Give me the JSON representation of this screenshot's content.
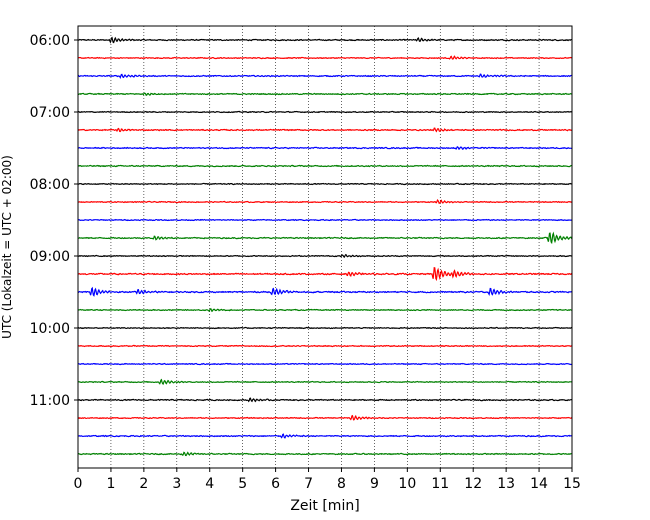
{
  "chart_data": {
    "type": "line",
    "title": "",
    "xlabel": "Zeit  [min]",
    "ylabel": "UTC (Lokalzeit = UTC + 02:00)",
    "xlim": [
      0,
      15
    ],
    "x_ticks": [
      "0",
      "1",
      "2",
      "3",
      "4",
      "5",
      "6",
      "7",
      "8",
      "9",
      "10",
      "11",
      "12",
      "13",
      "14",
      "15"
    ],
    "y_ticks": [
      "06:00",
      "07:00",
      "08:00",
      "09:00",
      "10:00",
      "11:00"
    ],
    "grid_x": true,
    "trace_colors": [
      "#000000",
      "#ff0000",
      "#0000ff",
      "#008000"
    ],
    "traces": [
      {
        "label": "06:00",
        "color": "#000000",
        "amplitude": 0.35,
        "events": [
          {
            "x": 1.0,
            "amp": 1.2
          },
          {
            "x": 10.3,
            "amp": 0.8
          }
        ]
      },
      {
        "label": "06:15",
        "color": "#ff0000",
        "amplitude": 0.3,
        "events": [
          {
            "x": 11.3,
            "amp": 0.8
          }
        ]
      },
      {
        "label": "06:30",
        "color": "#0000ff",
        "amplitude": 0.35,
        "events": [
          {
            "x": 1.3,
            "amp": 0.8
          },
          {
            "x": 12.2,
            "amp": 0.8
          }
        ]
      },
      {
        "label": "06:45",
        "color": "#008000",
        "amplitude": 0.35,
        "events": [
          {
            "x": 2.0,
            "amp": 0.6
          }
        ]
      },
      {
        "label": "07:00",
        "color": "#000000",
        "amplitude": 0.3,
        "events": []
      },
      {
        "label": "07:15",
        "color": "#ff0000",
        "amplitude": 0.35,
        "events": [
          {
            "x": 1.2,
            "amp": 0.8
          },
          {
            "x": 10.8,
            "amp": 0.8
          }
        ]
      },
      {
        "label": "07:30",
        "color": "#0000ff",
        "amplitude": 0.35,
        "events": [
          {
            "x": 11.5,
            "amp": 0.6
          }
        ]
      },
      {
        "label": "07:45",
        "color": "#008000",
        "amplitude": 0.35,
        "events": []
      },
      {
        "label": "08:00",
        "color": "#000000",
        "amplitude": 0.3,
        "events": []
      },
      {
        "label": "08:15",
        "color": "#ff0000",
        "amplitude": 0.3,
        "events": [
          {
            "x": 10.9,
            "amp": 0.7
          }
        ]
      },
      {
        "label": "08:30",
        "color": "#0000ff",
        "amplitude": 0.3,
        "events": []
      },
      {
        "label": "08:45",
        "color": "#008000",
        "amplitude": 0.35,
        "events": [
          {
            "x": 2.3,
            "amp": 0.8
          },
          {
            "x": 14.3,
            "amp": 2.5
          }
        ]
      },
      {
        "label": "09:00",
        "color": "#000000",
        "amplitude": 0.3,
        "events": [
          {
            "x": 8.0,
            "amp": 0.6
          }
        ]
      },
      {
        "label": "09:15",
        "color": "#ff0000",
        "amplitude": 0.4,
        "events": [
          {
            "x": 8.2,
            "amp": 1.0
          },
          {
            "x": 10.8,
            "amp": 3.0
          },
          {
            "x": 11.4,
            "amp": 1.5
          }
        ]
      },
      {
        "label": "09:30",
        "color": "#0000ff",
        "amplitude": 0.4,
        "events": [
          {
            "x": 0.4,
            "amp": 2.0
          },
          {
            "x": 1.8,
            "amp": 1.0
          },
          {
            "x": 5.9,
            "amp": 1.5
          },
          {
            "x": 12.5,
            "amp": 1.5
          }
        ]
      },
      {
        "label": "09:45",
        "color": "#008000",
        "amplitude": 0.3,
        "events": [
          {
            "x": 4.0,
            "amp": 0.6
          }
        ]
      },
      {
        "label": "10:00",
        "color": "#000000",
        "amplitude": 0.3,
        "events": []
      },
      {
        "label": "10:15",
        "color": "#ff0000",
        "amplitude": 0.3,
        "events": []
      },
      {
        "label": "10:30",
        "color": "#0000ff",
        "amplitude": 0.3,
        "events": []
      },
      {
        "label": "10:45",
        "color": "#008000",
        "amplitude": 0.3,
        "events": [
          {
            "x": 2.5,
            "amp": 1.0
          }
        ]
      },
      {
        "label": "11:00",
        "color": "#000000",
        "amplitude": 0.35,
        "events": [
          {
            "x": 5.2,
            "amp": 0.8
          }
        ]
      },
      {
        "label": "11:15",
        "color": "#ff0000",
        "amplitude": 0.3,
        "events": [
          {
            "x": 8.3,
            "amp": 1.0
          }
        ]
      },
      {
        "label": "11:30",
        "color": "#0000ff",
        "amplitude": 0.35,
        "events": [
          {
            "x": 6.2,
            "amp": 0.8
          }
        ]
      },
      {
        "label": "11:45",
        "color": "#008000",
        "amplitude": 0.35,
        "events": [
          {
            "x": 3.2,
            "amp": 0.8
          }
        ]
      }
    ]
  }
}
